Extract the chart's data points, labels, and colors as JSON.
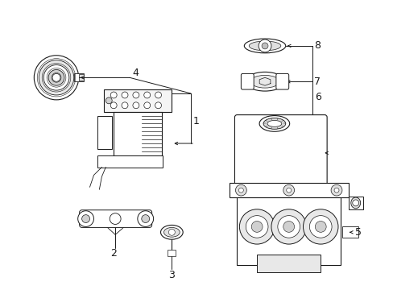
{
  "bg_color": "#ffffff",
  "fig_width": 4.89,
  "fig_height": 3.6,
  "dpi": 100,
  "line_color": "#1a1a1a",
  "lw": 0.7
}
